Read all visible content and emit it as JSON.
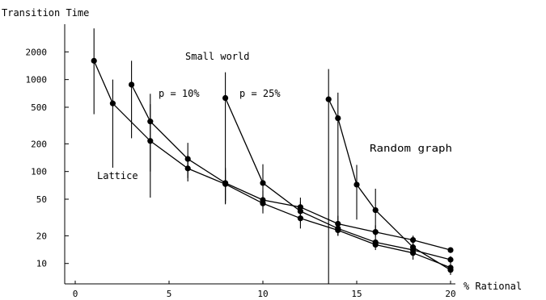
{
  "chart_data": {
    "type": "line",
    "title": "",
    "ylabel": "Transition Time",
    "xlabel": "% Rational",
    "xlim": [
      0,
      20
    ],
    "ylim": [
      6,
      4000
    ],
    "yscale": "log",
    "grid": false,
    "x_ticks": [
      0,
      5,
      10,
      15,
      20
    ],
    "y_ticks": [
      10,
      20,
      50,
      100,
      200,
      500,
      1000,
      2000
    ],
    "series": [
      {
        "name": "Lattice",
        "points": [
          {
            "x": 1,
            "y": 1600,
            "lo": 420,
            "hi": 3600
          },
          {
            "x": 2,
            "y": 550,
            "lo": 110,
            "hi": 1000
          },
          {
            "x": 4,
            "y": 215,
            "lo": 52,
            "hi": 540
          },
          {
            "x": 6,
            "y": 108,
            "lo": 78,
            "hi": 150
          },
          {
            "x": 8,
            "y": 73,
            "lo": 48,
            "hi": 105
          },
          {
            "x": 10,
            "y": 45,
            "lo": 35,
            "hi": 55
          },
          {
            "x": 12,
            "y": 31,
            "lo": 24,
            "hi": 39
          },
          {
            "x": 14,
            "y": 23,
            "lo": 20,
            "hi": 27
          },
          {
            "x": 16,
            "y": 16,
            "lo": 14,
            "hi": 18
          },
          {
            "x": 18,
            "y": 13,
            "lo": 12,
            "hi": 15
          },
          {
            "x": 20,
            "y": 9,
            "lo": 8,
            "hi": 10
          }
        ]
      },
      {
        "name": "p = 10%",
        "points": [
          {
            "x": 3,
            "y": 880,
            "lo": 230,
            "hi": 1600
          },
          {
            "x": 4,
            "y": 350,
            "lo": 100,
            "hi": 700
          },
          {
            "x": 6,
            "y": 137,
            "lo": 85,
            "hi": 205
          },
          {
            "x": 8,
            "y": 75,
            "lo": 44,
            "hi": 110
          },
          {
            "x": 10,
            "y": 49,
            "lo": 38,
            "hi": 62
          },
          {
            "x": 12,
            "y": 41,
            "lo": 33,
            "hi": 52
          },
          {
            "x": 14,
            "y": 27,
            "lo": 22,
            "hi": 33
          },
          {
            "x": 16,
            "y": 22,
            "lo": 19,
            "hi": 26
          },
          {
            "x": 18,
            "y": 18,
            "lo": 16,
            "hi": 20
          },
          {
            "x": 20,
            "y": 14,
            "lo": 13,
            "hi": 15
          }
        ]
      },
      {
        "name": "p = 25%",
        "points": [
          {
            "x": 8,
            "y": 630,
            "lo": 45,
            "hi": 1200
          },
          {
            "x": 10,
            "y": 75,
            "lo": 42,
            "hi": 120
          },
          {
            "x": 12,
            "y": 37,
            "lo": 28,
            "hi": 47
          },
          {
            "x": 14,
            "y": 24,
            "lo": 20,
            "hi": 29
          },
          {
            "x": 16,
            "y": 17,
            "lo": 15,
            "hi": 19
          },
          {
            "x": 18,
            "y": 14,
            "lo": 12,
            "hi": 16
          },
          {
            "x": 20,
            "y": 11,
            "lo": 10,
            "hi": 12
          }
        ]
      },
      {
        "name": "Random graph",
        "points": [
          {
            "x": 13.5,
            "y": 610,
            "lo": 3,
            "hi": 1300
          },
          {
            "x": 14,
            "y": 380,
            "lo": 28,
            "hi": 720
          },
          {
            "x": 15,
            "y": 72,
            "lo": 30,
            "hi": 118
          },
          {
            "x": 16,
            "y": 38,
            "lo": 20,
            "hi": 65
          },
          {
            "x": 18,
            "y": 15,
            "lo": 11,
            "hi": 20
          },
          {
            "x": 20,
            "y": 8.5,
            "lo": 7.5,
            "hi": 9.5
          }
        ]
      }
    ],
    "annotations": {
      "small_world": "Small world",
      "lattice": "Lattice",
      "p10": "p = 10%",
      "p25": "p = 25%",
      "random": "Random graph"
    }
  }
}
